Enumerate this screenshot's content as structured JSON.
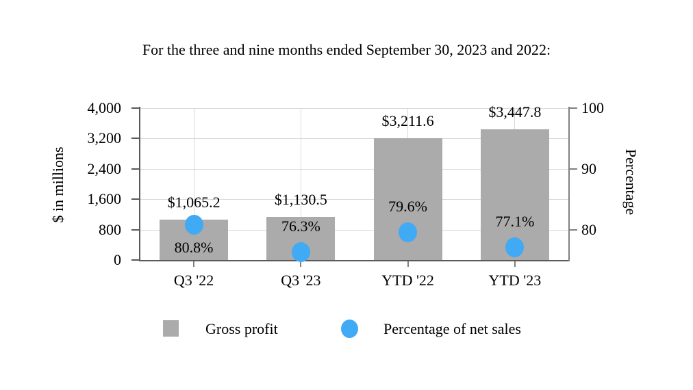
{
  "title": "For the three and nine months ended September 30, 2023 and 2022:",
  "chart_data": {
    "type": "bar",
    "subtype": "combo-bar-and-scatter",
    "title": "For the three and nine months ended September 30, 2023 and 2022:",
    "categories": [
      "Q3 '22",
      "Q3 '23",
      "YTD '22",
      "YTD '23"
    ],
    "series": [
      {
        "name": "Gross profit",
        "type": "bar",
        "axis": "left",
        "values": [
          1065.2,
          1130.5,
          3211.6,
          3447.8
        ],
        "labels": [
          "$1,065.2",
          "$1,130.5",
          "$3,211.6",
          "$3,447.8"
        ],
        "color": "#ababab"
      },
      {
        "name": "Percentage of net sales",
        "type": "scatter",
        "axis": "right",
        "values": [
          80.8,
          76.3,
          79.6,
          77.1
        ],
        "labels": [
          "80.8%",
          "76.3%",
          "79.6%",
          "77.1%"
        ],
        "label_placements": [
          "below",
          "above",
          "above",
          "above"
        ],
        "color": "#41aaf4"
      }
    ],
    "left_axis": {
      "title": "$ in millions",
      "min": 0,
      "max": 4000,
      "tick_interval": 800,
      "tick_values": [
        0,
        800,
        1600,
        2400,
        3200,
        4000
      ],
      "tick_labels": [
        "0",
        "800",
        "1,600",
        "2,400",
        "3,200",
        "4,000"
      ]
    },
    "right_axis": {
      "title": "Percentage",
      "min": 75,
      "max": 100,
      "tick_values": [
        80,
        90,
        100
      ],
      "tick_labels": [
        "80",
        "90",
        "100"
      ]
    },
    "grid": {
      "horizontal": true,
      "vertical_at_category_centers": true
    },
    "colors": {
      "axis": "#595959",
      "right_axis": "#808080",
      "gridline": "#d9d9d9",
      "background": "#ffffff",
      "text": "#000000"
    },
    "legend_position": "bottom"
  },
  "legend": {
    "items": [
      {
        "label": "Gross profit",
        "marker": "square",
        "color": "#ababab"
      },
      {
        "label": "Percentage of net sales",
        "marker": "circle",
        "color": "#41aaf4"
      }
    ]
  }
}
